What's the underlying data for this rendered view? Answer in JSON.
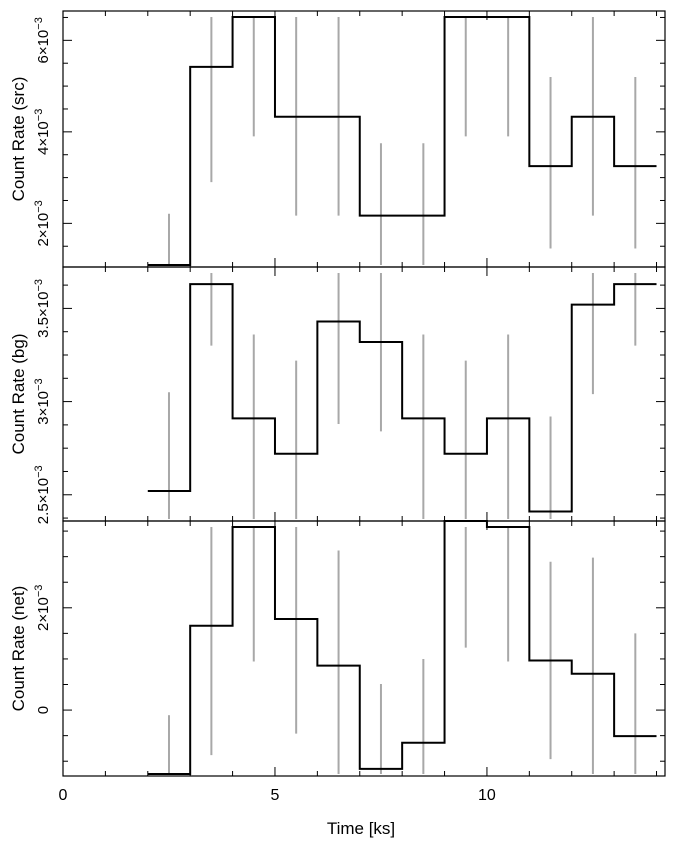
{
  "chart_data": {
    "type": "line",
    "xlabel": "Time [ks]",
    "x_range": [
      0,
      14.2
    ],
    "x_ticks": [
      0,
      5,
      10
    ],
    "x_tick_labels": [
      "0",
      "5",
      "10"
    ],
    "bin_width": 1,
    "panels": [
      {
        "ylabel": "Count Rate (src)",
        "ylim": [
          0.00109,
          0.00651
        ],
        "y_ticks": [
          0.002,
          0.004,
          0.006
        ],
        "y_tick_labels": [
          {
            "mant": "2×10",
            "exp": "−3"
          },
          {
            "mant": "4×10",
            "exp": "−3"
          },
          {
            "mant": "6×10",
            "exp": "−3"
          }
        ],
        "bins_x": [
          2.5,
          3.5,
          4.5,
          5.5,
          6.5,
          7.5,
          8.5,
          9.5,
          10.5,
          11.5,
          12.5,
          13.5
        ],
        "values": [
          0.00109,
          0.00542,
          0.00651,
          0.00433,
          0.00433,
          0.00217,
          0.00217,
          0.00651,
          0.00651,
          0.00325,
          0.00433,
          0.00325
        ],
        "err_low": [
          0.00109,
          0.0029,
          0.0039,
          0.00217,
          0.00217,
          0.00109,
          0.00109,
          0.0039,
          0.0039,
          0.00145,
          0.00217,
          0.00145
        ],
        "err_high": [
          0.00221,
          0.00651,
          0.00651,
          0.00651,
          0.00651,
          0.00375,
          0.00375,
          0.00651,
          0.00651,
          0.0052,
          0.00651,
          0.0052
        ]
      },
      {
        "ylabel": "Count Rate (bg)",
        "ylim": [
          0.00237,
          0.00369
        ],
        "y_ticks": [
          0.0025,
          0.003,
          0.0035
        ],
        "y_tick_labels": [
          {
            "mant": "2.5×10",
            "exp": "−3"
          },
          {
            "mant": "3×10",
            "exp": "−3"
          },
          {
            "mant": "3.5×10",
            "exp": "−3"
          }
        ],
        "bins_x": [
          2.5,
          3.5,
          4.5,
          5.5,
          6.5,
          7.5,
          8.5,
          9.5,
          10.5,
          11.5,
          12.5,
          13.5
        ],
        "values": [
          0.00252,
          0.00363,
          0.00291,
          0.00272,
          0.00343,
          0.00332,
          0.00291,
          0.00272,
          0.00291,
          0.00241,
          0.00352,
          0.00363
        ],
        "err_low": [
          0.00237,
          0.0033,
          0.00237,
          0.00237,
          0.00288,
          0.00284,
          0.00237,
          0.00237,
          0.00237,
          0.00237,
          0.00304,
          0.0033
        ],
        "err_high": [
          0.00305,
          0.00369,
          0.00336,
          0.00322,
          0.00369,
          0.00369,
          0.00336,
          0.00322,
          0.00336,
          0.00292,
          0.00369,
          0.00369
        ]
      },
      {
        "ylabel": "Count Rate (net)",
        "ylim": [
          -0.00125,
          0.00358
        ],
        "y_ticks": [
          0,
          0.002
        ],
        "y_tick_labels": [
          {
            "mant": "0",
            "exp": ""
          },
          {
            "mant": "2×10",
            "exp": "−3"
          }
        ],
        "bins_x": [
          2.5,
          3.5,
          4.5,
          5.5,
          6.5,
          7.5,
          8.5,
          9.5,
          10.5,
          11.5,
          12.5,
          13.5
        ],
        "values": [
          -0.00125,
          0.00165,
          0.00358,
          0.00178,
          0.00087,
          -0.00115,
          -0.00064,
          0.00393,
          0.00358,
          0.00097,
          0.00071,
          -0.00051
        ],
        "err_low": [
          -0.00125,
          -0.00088,
          0.00095,
          -0.00046,
          -0.00125,
          -0.00125,
          -0.00125,
          0.00122,
          0.00095,
          -0.00096,
          -0.00125,
          -0.00125
        ],
        "err_high": [
          -0.0001,
          0.00358,
          0.00358,
          0.00358,
          0.00312,
          0.00051,
          0.001,
          0.00358,
          0.00358,
          0.0029,
          0.00298,
          0.0015
        ]
      }
    ]
  }
}
